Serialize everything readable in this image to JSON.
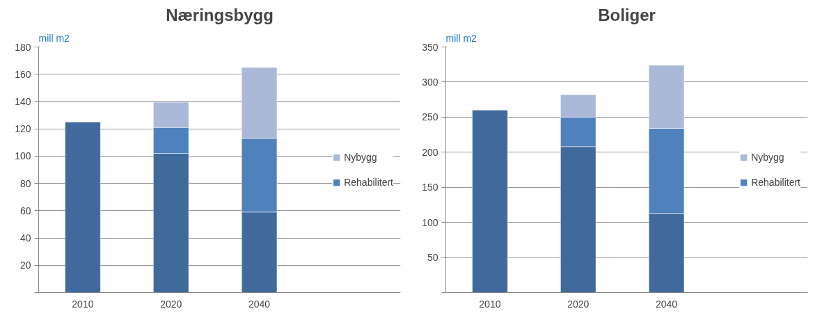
{
  "chart_data": [
    {
      "type": "bar",
      "title": "Næringsbygg",
      "ylabel": "mill m2",
      "categories": [
        "2010",
        "2020",
        "2040"
      ],
      "stacked": true,
      "series": [
        {
          "color": "#416a9c",
          "values": [
            125,
            102,
            59
          ]
        },
        {
          "name": "Rehabilitert",
          "color": "#4f81bd",
          "values": [
            null,
            19,
            54
          ]
        },
        {
          "name": "Nybygg",
          "color": "#aab9d7",
          "values": [
            null,
            18.5,
            52
          ]
        }
      ],
      "ylim": [
        0,
        180
      ],
      "yticks": [
        {
          "value": 0,
          "label": null
        },
        20,
        40,
        60,
        80,
        100,
        120,
        140,
        160,
        180
      ],
      "grid": "y",
      "legend": "right"
    },
    {
      "type": "bar",
      "title": "Boliger",
      "ylabel": "mill m2",
      "categories": [
        "2010",
        "2020",
        "2040"
      ],
      "stacked": true,
      "series": [
        {
          "color": "#416a9c",
          "values": [
            260,
            208,
            113
          ]
        },
        {
          "name": "Rehabilitert",
          "color": "#4f81bd",
          "values": [
            null,
            42,
            121
          ]
        },
        {
          "name": "Nybygg",
          "color": "#aab9d7",
          "values": [
            null,
            32,
            90
          ]
        }
      ],
      "ylim": [
        0,
        350
      ],
      "yticks": [
        {
          "value": 0,
          "label": null
        },
        50,
        100,
        150,
        200,
        250,
        300,
        350
      ],
      "grid": "y",
      "legend": "right"
    }
  ]
}
